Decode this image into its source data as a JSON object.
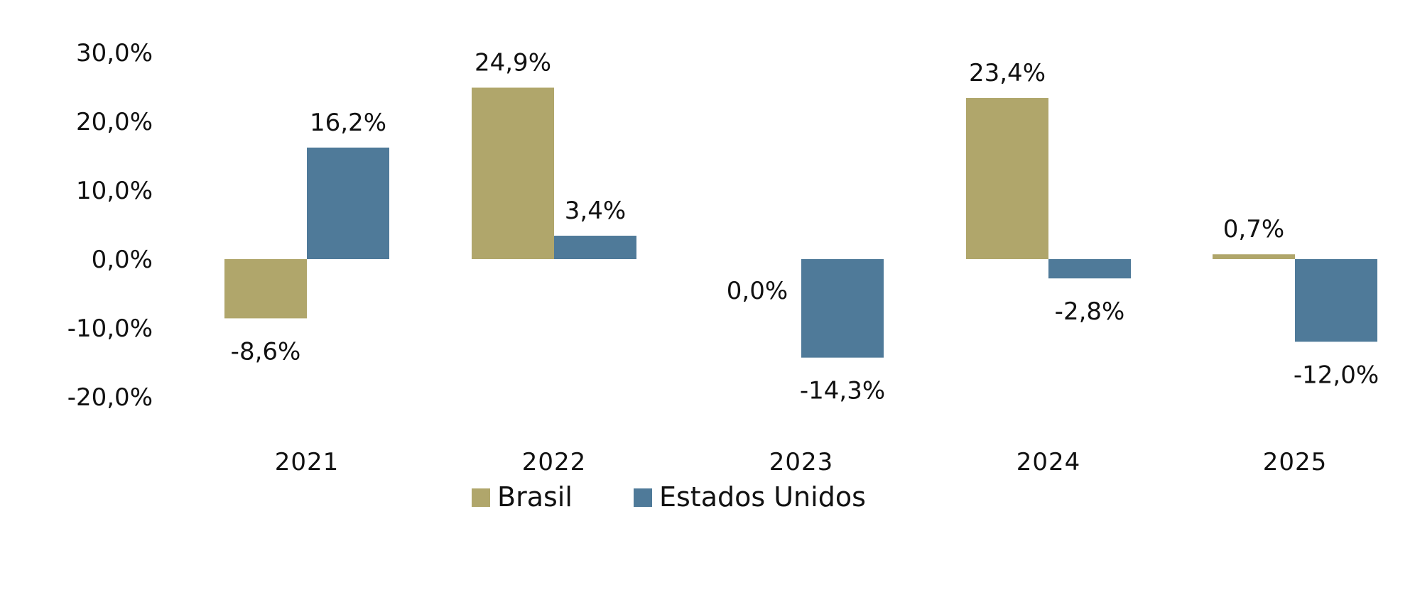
{
  "colors": {
    "Brasil": "#b0a66b",
    "Estados Unidos": "#4f7a99"
  },
  "chart_data": {
    "type": "bar",
    "title": "",
    "xlabel": "",
    "ylabel": "",
    "categories": [
      "2021",
      "2022",
      "2023",
      "2024",
      "2025"
    ],
    "ylim": [
      -20,
      30
    ],
    "yticks": [
      30,
      20,
      10,
      0,
      -10,
      -20
    ],
    "ytick_labels": [
      "30,0%",
      "20,0%",
      "10,0%",
      "0,0%",
      "-10,0%",
      "-20,0%"
    ],
    "grid": false,
    "legend": "bottom",
    "series": [
      {
        "name": "Brasil",
        "values": [
          -8.6,
          24.9,
          0.0,
          23.4,
          0.7
        ],
        "labels": [
          "-8,6%",
          "24,9%",
          "0,0%",
          "23,4%",
          "0,7%"
        ]
      },
      {
        "name": "Estados Unidos",
        "values": [
          16.2,
          3.4,
          -14.3,
          -2.8,
          -12.0
        ],
        "labels": [
          "16,2%",
          "3,4%",
          "-14,3%",
          "-2,8%",
          "-12,0%"
        ]
      }
    ]
  }
}
